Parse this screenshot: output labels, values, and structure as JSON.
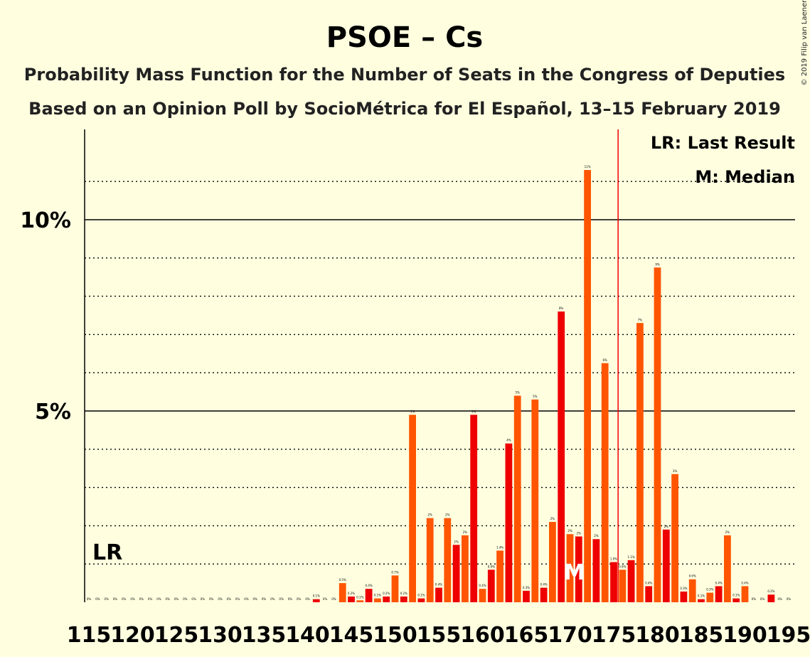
{
  "copyright": "© 2019 Filip van Laenen",
  "chart_data": {
    "type": "bar",
    "title": "PSOE – Cs",
    "subtitle": "Probability Mass Function for the Number of Seats in the Congress of Deputies",
    "subtitle2": "Based on an Opinion Poll by SocioMétrica for El Español, 13–15 February 2019",
    "x": [
      115,
      116,
      117,
      118,
      119,
      120,
      121,
      122,
      123,
      124,
      125,
      126,
      127,
      128,
      129,
      130,
      131,
      132,
      133,
      134,
      135,
      136,
      137,
      138,
      139,
      140,
      141,
      142,
      143,
      144,
      145,
      146,
      147,
      148,
      149,
      150,
      151,
      152,
      153,
      154,
      155,
      156,
      157,
      158,
      159,
      160,
      161,
      162,
      163,
      164,
      165,
      166,
      167,
      168,
      169,
      170,
      171,
      172,
      173,
      174,
      175,
      176,
      177,
      178,
      179,
      180,
      181,
      182,
      183,
      184,
      185,
      186,
      187,
      188,
      189,
      190,
      191,
      192,
      193,
      194,
      195
    ],
    "values": [
      0,
      0,
      0,
      0,
      0,
      0,
      0,
      0,
      0,
      0,
      0,
      0,
      0,
      0,
      0,
      0,
      0,
      0,
      0,
      0,
      0,
      0,
      0,
      0,
      0,
      0,
      0.08,
      0,
      0,
      0.5,
      0.15,
      0.05,
      0.35,
      0.1,
      0.15,
      0.7,
      0.15,
      4.9,
      0.1,
      2.2,
      0.38,
      2.2,
      1.5,
      1.75,
      4.9,
      0.35,
      0.85,
      1.35,
      4.15,
      5.4,
      0.3,
      5.3,
      0.38,
      2.1,
      7.6,
      1.78,
      1.72,
      11.3,
      1.65,
      6.25,
      1.05,
      0.85,
      1.1,
      7.3,
      0.42,
      8.75,
      1.9,
      3.35,
      0.28,
      0.6,
      0.08,
      0.25,
      0.42,
      1.75,
      0.1,
      0.42,
      0,
      0,
      0.2,
      0,
      0
    ],
    "labels": [
      "0%",
      "0%",
      "0%",
      "0%",
      "0%",
      "0%",
      "0%",
      "0%",
      "0%",
      "0%",
      "0%",
      "0%",
      "0%",
      "0%",
      "0%",
      "0%",
      "0%",
      "0%",
      "0%",
      "0%",
      "0%",
      "0%",
      "0%",
      "0%",
      "0%",
      "0%",
      "0.1%",
      "0%",
      "0%",
      "0.5%",
      "0.2%",
      "0.1%",
      "0.4%",
      "0.1%",
      "0.2%",
      "0.7%",
      "0.2%",
      "5%",
      "0.1%",
      "2%",
      "0.4%",
      "2%",
      "2%",
      "2%",
      "5%",
      "0.4%",
      "0.9%",
      "1.4%",
      "4%",
      "5%",
      "0.3%",
      "5%",
      "0.4%",
      "2%",
      "8%",
      "2%",
      "2%",
      "11%",
      "2%",
      "6%",
      "1.0%",
      "0.9%",
      "1.1%",
      "7%",
      "0.4%",
      "9%",
      "2%",
      "3%",
      "0.3%",
      "0.6%",
      "0.1%",
      "0.3%",
      "0.4%",
      "2%",
      "0.1%",
      "0.4%",
      "0%",
      "0%",
      "0.2%",
      "0%",
      "0%"
    ],
    "x_tick_labels": [
      "115",
      "120",
      "125",
      "130",
      "135",
      "140",
      "145",
      "150",
      "155",
      "160",
      "165",
      "170",
      "175",
      "180",
      "185",
      "190",
      "195"
    ],
    "y_tick_labels": [
      "5%",
      "10%"
    ],
    "ylim": [
      0,
      12.3
    ],
    "last_result": 176,
    "median": 170,
    "lr_label": "LR",
    "median_label": "M",
    "legend": [
      "LR: Last Result",
      "M: Median"
    ],
    "colors": {
      "bar_a": "#ee0000",
      "bar_b": "#ff5500",
      "last_result": "#ee0000",
      "background": "#ffffe0"
    }
  }
}
